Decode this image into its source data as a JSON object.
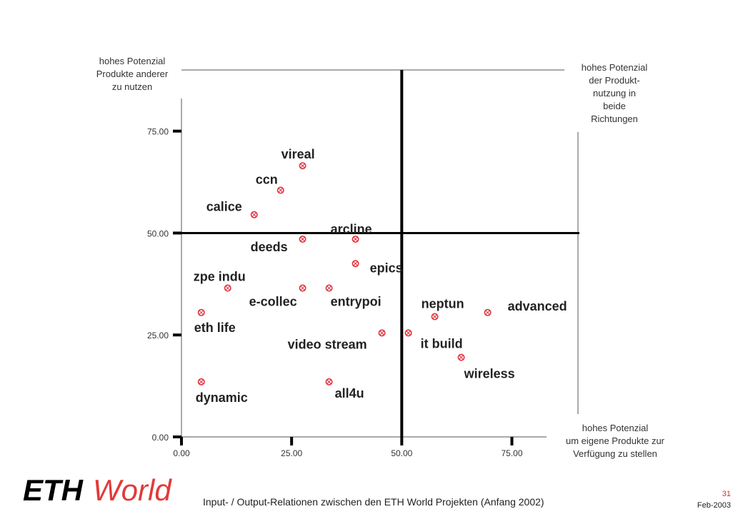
{
  "corners": {
    "top_left": [
      "hohes Potenzial",
      "Produkte anderer",
      "zu nutzen"
    ],
    "top_right": [
      "hohes Potenzial",
      "der Produkt-",
      "nutzung in",
      "beide",
      "Richtungen"
    ],
    "bottom_right": [
      "hohes Potenzial",
      "um eigene Produkte zur",
      "Verfügung zu stellen"
    ]
  },
  "footer": {
    "logo_text_a": "ETH",
    "logo_text_b": "World",
    "title": "Input- / Output-Relationen zwischen den ETH World Projekten (Anfang 2002)",
    "page": "31",
    "date": "Feb-2003"
  },
  "colors": {
    "marker": "#e0303a",
    "axis": "#000000",
    "label": "#222222",
    "logo_black": "#000000",
    "logo_red": "#e13a3a"
  },
  "chart_data": {
    "type": "scatter",
    "title": "",
    "xlabel": "",
    "ylabel": "",
    "xlim": [
      0,
      90
    ],
    "ylim": [
      0,
      90
    ],
    "x_ticks": [
      0,
      25,
      50,
      75
    ],
    "y_ticks": [
      0,
      25,
      50,
      75
    ],
    "x_tick_labels": [
      "0.00",
      "25.00",
      "50.00",
      "75.00"
    ],
    "y_tick_labels": [
      "0.00",
      "25.00",
      "50.00",
      "75.00"
    ],
    "quadrant_divider": {
      "x": 50,
      "y": 50
    },
    "grid": false,
    "points": [
      {
        "label": "vireal",
        "x": 27.5,
        "y": 66.5
      },
      {
        "label": "ccn",
        "x": 22.5,
        "y": 60.5
      },
      {
        "label": "calice",
        "x": 16.5,
        "y": 54.5
      },
      {
        "label": "arcline",
        "x": 39.5,
        "y": 48.5
      },
      {
        "label": "deeds",
        "x": 27.5,
        "y": 48.5
      },
      {
        "label": "epics",
        "x": 39.5,
        "y": 42.5
      },
      {
        "label": "zpe indu",
        "x": 10.5,
        "y": 36.5
      },
      {
        "label": "e-collec",
        "x": 27.5,
        "y": 36.5
      },
      {
        "label": "entrypoi",
        "x": 33.5,
        "y": 36.5
      },
      {
        "label": "neptun",
        "x": 57.5,
        "y": 29.5
      },
      {
        "label": "advanced",
        "x": 69.5,
        "y": 30.5
      },
      {
        "label": "eth life",
        "x": 4.5,
        "y": 30.5
      },
      {
        "label": "video stream",
        "x": 45.5,
        "y": 25.5
      },
      {
        "label": "it build",
        "x": 51.5,
        "y": 25.5
      },
      {
        "label": "wireless",
        "x": 63.5,
        "y": 19.5
      },
      {
        "label": "dynamic",
        "x": 4.5,
        "y": 13.5
      },
      {
        "label": "all4u",
        "x": 33.5,
        "y": 13.5
      }
    ]
  }
}
